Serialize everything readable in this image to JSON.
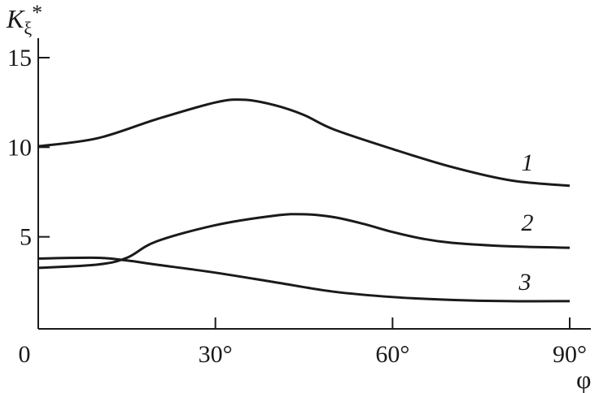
{
  "chart_data": {
    "type": "line",
    "title": "",
    "ylabel": "Kξ*",
    "ylabel_main": "K",
    "ylabel_sub": "ξ",
    "ylabel_sup": "*",
    "xlabel": "φ",
    "xlim": [
      0,
      90
    ],
    "ylim": [
      0,
      15
    ],
    "grid": false,
    "x_ticks": [
      0,
      30,
      60,
      90
    ],
    "x_tick_labels": [
      "0",
      "30°",
      "60°",
      "90°"
    ],
    "y_ticks": [
      5,
      10,
      15
    ],
    "y_tick_labels": [
      "5",
      "10",
      "15"
    ],
    "line_color": "#1a1a1a",
    "series": [
      {
        "name": "1",
        "x": [
          0,
          10,
          20,
          30,
          35,
          40,
          45,
          50,
          60,
          70,
          80,
          90
        ],
        "y": [
          10.05,
          10.5,
          11.56,
          12.5,
          12.65,
          12.35,
          11.8,
          11.0,
          9.9,
          8.9,
          8.15,
          7.85
        ]
      },
      {
        "name": "2",
        "x": [
          0,
          10,
          15,
          20,
          30,
          40,
          45,
          50,
          55,
          60,
          65,
          70,
          80,
          90
        ],
        "y": [
          3.27,
          3.45,
          3.83,
          4.74,
          5.65,
          6.18,
          6.26,
          6.1,
          5.73,
          5.27,
          4.9,
          4.67,
          4.47,
          4.39
        ]
      },
      {
        "name": "3",
        "x": [
          0,
          10,
          15,
          20,
          30,
          40,
          50,
          60,
          70,
          80,
          90
        ],
        "y": [
          3.79,
          3.83,
          3.68,
          3.45,
          3.0,
          2.47,
          1.94,
          1.64,
          1.48,
          1.41,
          1.41
        ]
      }
    ]
  }
}
